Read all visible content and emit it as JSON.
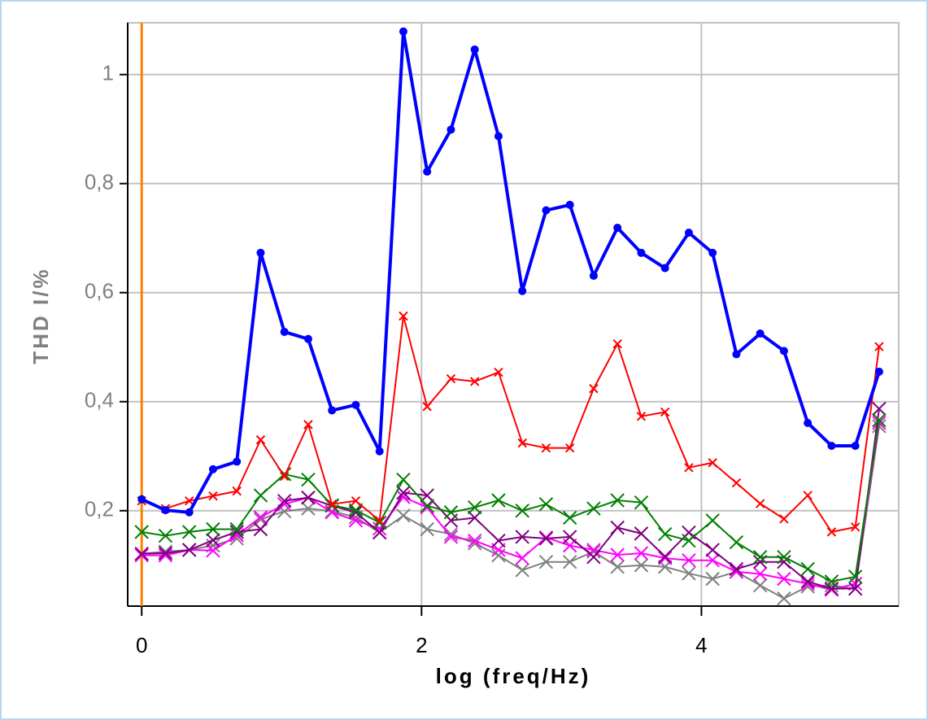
{
  "chart_data": {
    "type": "line",
    "x_label": "log (freq/Hz)",
    "y_label": "THD I/%",
    "xlim": [
      -0.1,
      5.41
    ],
    "ylim": [
      0.025,
      1.095
    ],
    "xticks": [
      0,
      2,
      4
    ],
    "yticks": [
      {
        "value": 0.2,
        "label": "0,2"
      },
      {
        "value": 0.4,
        "label": "0,4"
      },
      {
        "value": 0.6,
        "label": "0,6"
      },
      {
        "value": 0.8,
        "label": "0,8"
      },
      {
        "value": 1,
        "label": "1"
      }
    ],
    "grid": true,
    "vline": {
      "x": 0,
      "color": "#ff8000"
    },
    "x": [
      0,
      0.17,
      0.34,
      0.51,
      0.68,
      0.85,
      1.02,
      1.19,
      1.36,
      1.53,
      1.7,
      1.87,
      2.04,
      2.21,
      2.38,
      2.55,
      2.72,
      2.89,
      3.06,
      3.23,
      3.4,
      3.57,
      3.74,
      3.91,
      4.08,
      4.25,
      4.42,
      4.59,
      4.76,
      4.93,
      5.1,
      5.27
    ],
    "series": [
      {
        "color": "#0000ff",
        "marker": "dot",
        "width": 4,
        "values": [
          0.221,
          0.201,
          0.197,
          0.276,
          0.29,
          0.673,
          0.528,
          0.515,
          0.384,
          0.394,
          0.309,
          1.079,
          0.822,
          0.899,
          1.046,
          0.887,
          0.603,
          0.751,
          0.761,
          0.631,
          0.719,
          0.673,
          0.645,
          0.71,
          0.673,
          0.487,
          0.525,
          0.493,
          0.361,
          0.319,
          0.319,
          0.455
        ]
      },
      {
        "color": "#ff0000",
        "marker": "x-small",
        "width": 2,
        "values": [
          0.218,
          0.204,
          0.218,
          0.227,
          0.236,
          0.33,
          0.263,
          0.358,
          0.212,
          0.218,
          0.182,
          0.557,
          0.391,
          0.442,
          0.437,
          0.454,
          0.324,
          0.315,
          0.315,
          0.424,
          0.506,
          0.373,
          0.381,
          0.279,
          0.288,
          0.251,
          0.213,
          0.185,
          0.228,
          0.161,
          0.17,
          0.501
        ]
      },
      {
        "color": "#008000",
        "marker": "x",
        "width": 2,
        "values": [
          0.161,
          0.154,
          0.161,
          0.166,
          0.166,
          0.228,
          0.267,
          0.257,
          0.21,
          0.201,
          0.178,
          0.257,
          0.209,
          0.197,
          0.206,
          0.219,
          0.2,
          0.212,
          0.187,
          0.204,
          0.219,
          0.215,
          0.157,
          0.145,
          0.182,
          0.142,
          0.115,
          0.115,
          0.093,
          0.07,
          0.079,
          0.366
        ]
      },
      {
        "color": "#800080",
        "marker": "x",
        "width": 2,
        "values": [
          0.121,
          0.122,
          0.128,
          0.146,
          0.161,
          0.166,
          0.218,
          0.224,
          0.209,
          0.197,
          0.16,
          0.233,
          0.228,
          0.182,
          0.187,
          0.145,
          0.152,
          0.149,
          0.152,
          0.115,
          0.169,
          0.158,
          0.116,
          0.16,
          0.128,
          0.093,
          0.106,
          0.106,
          0.07,
          0.057,
          0.057,
          0.387
        ]
      },
      {
        "color": "#ff00ff",
        "marker": "x",
        "width": 2,
        "values": [
          0.118,
          0.118,
          0.128,
          0.127,
          0.155,
          0.188,
          0.212,
          0.224,
          0.197,
          0.182,
          0.167,
          0.225,
          0.206,
          0.152,
          0.145,
          0.128,
          0.113,
          0.151,
          0.136,
          0.128,
          0.119,
          0.122,
          0.113,
          0.109,
          0.109,
          0.088,
          0.084,
          0.075,
          0.066,
          0.055,
          0.066,
          0.361
        ]
      },
      {
        "color": "#808080",
        "marker": "x",
        "width": 2,
        "values": [
          0.121,
          0.125,
          0.128,
          0.136,
          0.149,
          0.184,
          0.199,
          0.204,
          0.199,
          0.188,
          0.16,
          0.191,
          0.166,
          0.157,
          0.14,
          0.118,
          0.091,
          0.106,
          0.106,
          0.125,
          0.097,
          0.1,
          0.097,
          0.085,
          0.075,
          0.088,
          0.063,
          0.039,
          0.061,
          0.063,
          0.057,
          0.355
        ]
      }
    ]
  }
}
